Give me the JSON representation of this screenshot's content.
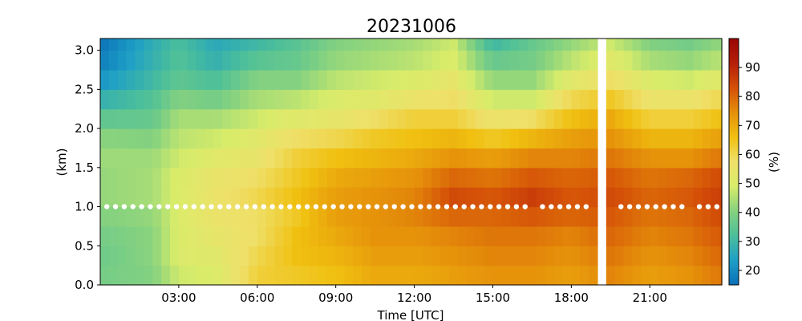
{
  "chart_data": {
    "type": "heatmap",
    "title": "20231006",
    "xlabel": "Time [UTC]",
    "ylabel": "(km)",
    "colorbar_label": "(%)",
    "xlim": [
      0,
      23.75
    ],
    "ylim": [
      0,
      3.15
    ],
    "clim": [
      15,
      100
    ],
    "x_ticks": [
      {
        "value": 3,
        "label": "03:00"
      },
      {
        "value": 6,
        "label": "06:00"
      },
      {
        "value": 9,
        "label": "09:00"
      },
      {
        "value": 12,
        "label": "12:00"
      },
      {
        "value": 15,
        "label": "15:00"
      },
      {
        "value": 18,
        "label": "18:00"
      },
      {
        "value": 21,
        "label": "21:00"
      }
    ],
    "y_ticks": [
      {
        "value": 0.0,
        "label": "0.0"
      },
      {
        "value": 0.5,
        "label": "0.5"
      },
      {
        "value": 1.0,
        "label": "1.0"
      },
      {
        "value": 1.5,
        "label": "1.5"
      },
      {
        "value": 2.0,
        "label": "2.0"
      },
      {
        "value": 2.5,
        "label": "2.5"
      },
      {
        "value": 3.0,
        "label": "3.0"
      }
    ],
    "colorbar_ticks": [
      {
        "value": 20,
        "label": "20"
      },
      {
        "value": 30,
        "label": "30"
      },
      {
        "value": 40,
        "label": "40"
      },
      {
        "value": 50,
        "label": "50"
      },
      {
        "value": 60,
        "label": "60"
      },
      {
        "value": 70,
        "label": "70"
      },
      {
        "value": 80,
        "label": "80"
      },
      {
        "value": 90,
        "label": "90"
      }
    ],
    "time_step_hours": 0.3333,
    "height_levels_km": [
      0.0,
      0.25,
      0.5,
      0.75,
      1.0,
      1.25,
      1.5,
      1.75,
      2.0,
      2.25,
      2.5,
      2.75,
      3.0
    ],
    "missing_intervals": [
      [
        18.9,
        19.3
      ]
    ],
    "profiles": [
      {
        "time": 0.0,
        "values": [
          38,
          37,
          38,
          40,
          42,
          42,
          43,
          41,
          35,
          28,
          22,
          18,
          16
        ]
      },
      {
        "time": 2.0,
        "values": [
          40,
          41,
          41,
          42,
          44,
          44,
          43,
          40,
          36,
          33,
          30,
          28,
          27
        ]
      },
      {
        "time": 3.0,
        "values": [
          48,
          50,
          50,
          50,
          50,
          50,
          48,
          46,
          44,
          40,
          35,
          33,
          32
        ]
      },
      {
        "time": 4.4,
        "values": [
          50,
          52,
          54,
          56,
          56,
          55,
          52,
          48,
          44,
          38,
          32,
          28,
          26
        ]
      },
      {
        "time": 6.0,
        "values": [
          62,
          60,
          58,
          58,
          60,
          58,
          55,
          52,
          48,
          44,
          40,
          34,
          30
        ]
      },
      {
        "time": 7.5,
        "values": [
          64,
          66,
          66,
          64,
          66,
          64,
          62,
          58,
          52,
          46,
          40,
          36,
          34
        ]
      },
      {
        "time": 9.0,
        "values": [
          66,
          68,
          70,
          72,
          72,
          70,
          66,
          60,
          54,
          50,
          46,
          42,
          40
        ]
      },
      {
        "time": 10.5,
        "values": [
          70,
          72,
          74,
          74,
          74,
          72,
          68,
          64,
          58,
          52,
          48,
          44,
          42
        ]
      },
      {
        "time": 12.0,
        "values": [
          70,
          72,
          74,
          76,
          76,
          74,
          70,
          66,
          62,
          56,
          50,
          46,
          44
        ]
      },
      {
        "time": 13.5,
        "values": [
          72,
          74,
          76,
          80,
          84,
          80,
          74,
          68,
          62,
          58,
          54,
          50,
          48
        ]
      },
      {
        "time": 15.0,
        "values": [
          74,
          76,
          78,
          80,
          82,
          78,
          72,
          64,
          56,
          48,
          42,
          36,
          30
        ]
      },
      {
        "time": 16.5,
        "values": [
          74,
          76,
          78,
          82,
          86,
          82,
          76,
          68,
          58,
          48,
          42,
          38,
          36
        ]
      },
      {
        "time": 18.0,
        "values": [
          72,
          74,
          76,
          80,
          82,
          80,
          76,
          72,
          66,
          60,
          52,
          46,
          42
        ]
      },
      {
        "time": 19.5,
        "values": [
          76,
          78,
          80,
          82,
          84,
          82,
          78,
          74,
          70,
          64,
          58,
          52,
          48
        ]
      },
      {
        "time": 21.0,
        "values": [
          72,
          74,
          76,
          78,
          80,
          78,
          74,
          68,
          62,
          56,
          50,
          44,
          40
        ]
      },
      {
        "time": 22.5,
        "values": [
          74,
          76,
          78,
          80,
          82,
          80,
          74,
          68,
          62,
          56,
          48,
          42,
          38
        ]
      },
      {
        "time": 23.75,
        "values": [
          78,
          80,
          82,
          84,
          86,
          84,
          78,
          72,
          66,
          60,
          52,
          46,
          42
        ]
      }
    ],
    "markers": {
      "height_km": 1.0,
      "color": "#ffffff",
      "spacing_hours": 0.333,
      "start_hour": 0.25,
      "end_hour": 23.65,
      "gaps": [
        [
          16.5,
          16.9
        ],
        [
          18.6,
          19.7
        ],
        [
          22.3,
          22.6
        ]
      ]
    },
    "colormap": [
      "#0a6fb8",
      "#1e9fc6",
      "#4cbf9a",
      "#86d27f",
      "#d8ec6a",
      "#efe06a",
      "#f0c010",
      "#e5900a",
      "#d45008",
      "#b51e08",
      "#9a0606"
    ]
  }
}
